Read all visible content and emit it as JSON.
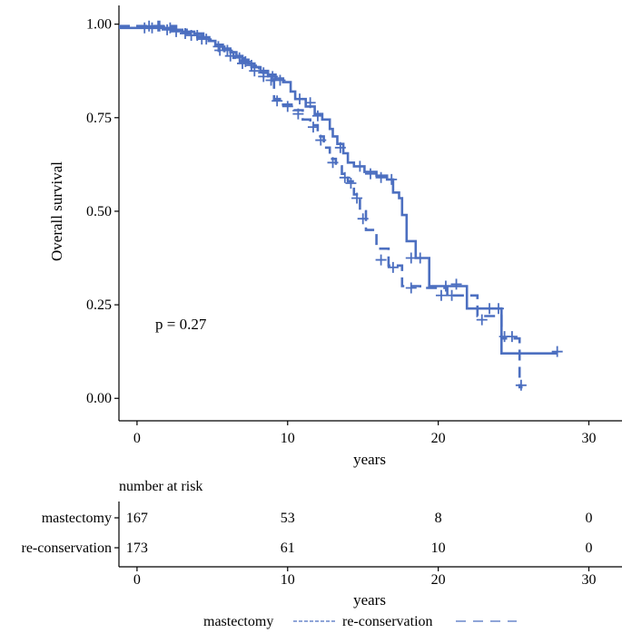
{
  "chart_data": [
    {
      "type": "line",
      "subtype": "kaplan-meier",
      "title": "",
      "xlabel": "years",
      "ylabel": "Overall survival",
      "xlim": [
        -1.2,
        32.2
      ],
      "ylim": [
        -0.06,
        1.05
      ],
      "xticks": [
        0,
        10,
        20,
        30
      ],
      "xtick_labels": [
        "0",
        "10",
        "20",
        "30"
      ],
      "yticks": [
        0.0,
        0.25,
        0.5,
        0.75,
        1.0
      ],
      "ytick_labels": [
        "0.00",
        "0.25",
        "0.50",
        "0.75",
        "1.00"
      ],
      "grid": false,
      "annotation": "p = 0.27",
      "series": [
        {
          "name": "mastectomy",
          "color": "#4c6fc0",
          "dash": "solid",
          "steps": [
            [
              -1.2,
              0.99
            ],
            [
              1.5,
              0.99
            ],
            [
              2.3,
              0.985
            ],
            [
              3.0,
              0.98
            ],
            [
              3.8,
              0.975
            ],
            [
              4.4,
              0.965
            ],
            [
              4.8,
              0.955
            ],
            [
              5.2,
              0.945
            ],
            [
              5.7,
              0.935
            ],
            [
              6.2,
              0.925
            ],
            [
              6.6,
              0.915
            ],
            [
              7.0,
              0.905
            ],
            [
              7.4,
              0.895
            ],
            [
              7.8,
              0.885
            ],
            [
              8.2,
              0.875
            ],
            [
              8.7,
              0.865
            ],
            [
              9.2,
              0.855
            ],
            [
              9.7,
              0.845
            ],
            [
              10.2,
              0.82
            ],
            [
              10.5,
              0.8
            ],
            [
              11.2,
              0.78
            ],
            [
              11.8,
              0.76
            ],
            [
              12.3,
              0.745
            ],
            [
              12.8,
              0.72
            ],
            [
              13.0,
              0.7
            ],
            [
              13.3,
              0.68
            ],
            [
              13.7,
              0.655
            ],
            [
              14.0,
              0.63
            ],
            [
              14.4,
              0.62
            ],
            [
              15.1,
              0.605
            ],
            [
              15.9,
              0.595
            ],
            [
              16.6,
              0.585
            ],
            [
              17.0,
              0.55
            ],
            [
              17.4,
              0.535
            ],
            [
              17.6,
              0.49
            ],
            [
              17.9,
              0.42
            ],
            [
              18.5,
              0.375
            ],
            [
              19.4,
              0.3
            ],
            [
              21.9,
              0.24
            ],
            [
              24.2,
              0.12
            ],
            [
              27.9,
              0.12
            ]
          ],
          "censor": [
            [
              0.5,
              0.99
            ],
            [
              1.0,
              0.99
            ],
            [
              1.4,
              0.995
            ],
            [
              2.0,
              0.985
            ],
            [
              2.6,
              0.98
            ],
            [
              3.2,
              0.975
            ],
            [
              4.0,
              0.97
            ],
            [
              4.6,
              0.96
            ],
            [
              5.4,
              0.94
            ],
            [
              6.0,
              0.93
            ],
            [
              6.8,
              0.91
            ],
            [
              7.2,
              0.9
            ],
            [
              7.6,
              0.89
            ],
            [
              8.4,
              0.87
            ],
            [
              9.0,
              0.86
            ],
            [
              9.5,
              0.85
            ],
            [
              10.8,
              0.8
            ],
            [
              11.5,
              0.79
            ],
            [
              12.0,
              0.755
            ],
            [
              13.5,
              0.67
            ],
            [
              14.8,
              0.62
            ],
            [
              15.5,
              0.6
            ],
            [
              16.2,
              0.59
            ],
            [
              16.9,
              0.585
            ],
            [
              18.2,
              0.375
            ],
            [
              18.8,
              0.375
            ],
            [
              20.5,
              0.3
            ],
            [
              21.2,
              0.305
            ],
            [
              23.4,
              0.24
            ],
            [
              24.0,
              0.24
            ],
            [
              27.9,
              0.125
            ]
          ]
        },
        {
          "name": "re-conservation",
          "color": "#4c6fc0",
          "dash": "dashed",
          "steps": [
            [
              -1.2,
              0.995
            ],
            [
              1.8,
              0.995
            ],
            [
              2.6,
              0.985
            ],
            [
              3.3,
              0.975
            ],
            [
              4.0,
              0.965
            ],
            [
              4.6,
              0.955
            ],
            [
              5.2,
              0.94
            ],
            [
              5.8,
              0.925
            ],
            [
              6.4,
              0.91
            ],
            [
              6.9,
              0.9
            ],
            [
              7.5,
              0.885
            ],
            [
              8.1,
              0.87
            ],
            [
              8.7,
              0.855
            ],
            [
              9.1,
              0.8
            ],
            [
              9.6,
              0.785
            ],
            [
              10.4,
              0.77
            ],
            [
              11.0,
              0.745
            ],
            [
              11.5,
              0.73
            ],
            [
              12.0,
              0.7
            ],
            [
              12.4,
              0.67
            ],
            [
              12.8,
              0.64
            ],
            [
              13.2,
              0.62
            ],
            [
              13.6,
              0.6
            ],
            [
              14.0,
              0.58
            ],
            [
              14.4,
              0.545
            ],
            [
              14.8,
              0.5
            ],
            [
              15.2,
              0.45
            ],
            [
              15.9,
              0.4
            ],
            [
              16.7,
              0.355
            ],
            [
              17.6,
              0.3
            ],
            [
              18.8,
              0.295
            ],
            [
              20.6,
              0.275
            ],
            [
              22.6,
              0.22
            ],
            [
              24.2,
              0.16
            ],
            [
              25.4,
              0.03
            ],
            [
              25.6,
              0.03
            ]
          ],
          "censor": [
            [
              0.8,
              0.995
            ],
            [
              1.5,
              0.995
            ],
            [
              2.2,
              0.99
            ],
            [
              3.6,
              0.97
            ],
            [
              4.3,
              0.96
            ],
            [
              5.5,
              0.93
            ],
            [
              6.2,
              0.915
            ],
            [
              7.0,
              0.895
            ],
            [
              7.8,
              0.875
            ],
            [
              8.4,
              0.86
            ],
            [
              8.9,
              0.85
            ],
            [
              9.3,
              0.795
            ],
            [
              10.0,
              0.78
            ],
            [
              10.7,
              0.76
            ],
            [
              11.7,
              0.725
            ],
            [
              12.2,
              0.69
            ],
            [
              13.0,
              0.63
            ],
            [
              13.8,
              0.59
            ],
            [
              14.2,
              0.575
            ],
            [
              14.6,
              0.535
            ],
            [
              15.0,
              0.48
            ],
            [
              16.2,
              0.37
            ],
            [
              17.0,
              0.35
            ],
            [
              18.2,
              0.295
            ],
            [
              20.2,
              0.275
            ],
            [
              20.9,
              0.275
            ],
            [
              22.9,
              0.21
            ],
            [
              24.4,
              0.165
            ],
            [
              24.9,
              0.165
            ],
            [
              25.5,
              0.035
            ]
          ]
        }
      ]
    },
    {
      "type": "table",
      "title": "number at risk",
      "xlabel": "years",
      "xlim": [
        -1.2,
        32.2
      ],
      "xticks": [
        0,
        10,
        20,
        30
      ],
      "xtick_labels": [
        "0",
        "10",
        "20",
        "30"
      ],
      "rows": [
        {
          "name": "mastectomy",
          "values": [
            "167",
            "53",
            "8",
            "0"
          ]
        },
        {
          "name": "re-conservation",
          "values": [
            "173",
            "61",
            "10",
            "0"
          ]
        }
      ]
    }
  ],
  "legend": {
    "position": "bottom",
    "entries": [
      {
        "label": "mastectomy",
        "dash": "solid"
      },
      {
        "label": "re-conservation",
        "dash": "dashed"
      }
    ]
  }
}
